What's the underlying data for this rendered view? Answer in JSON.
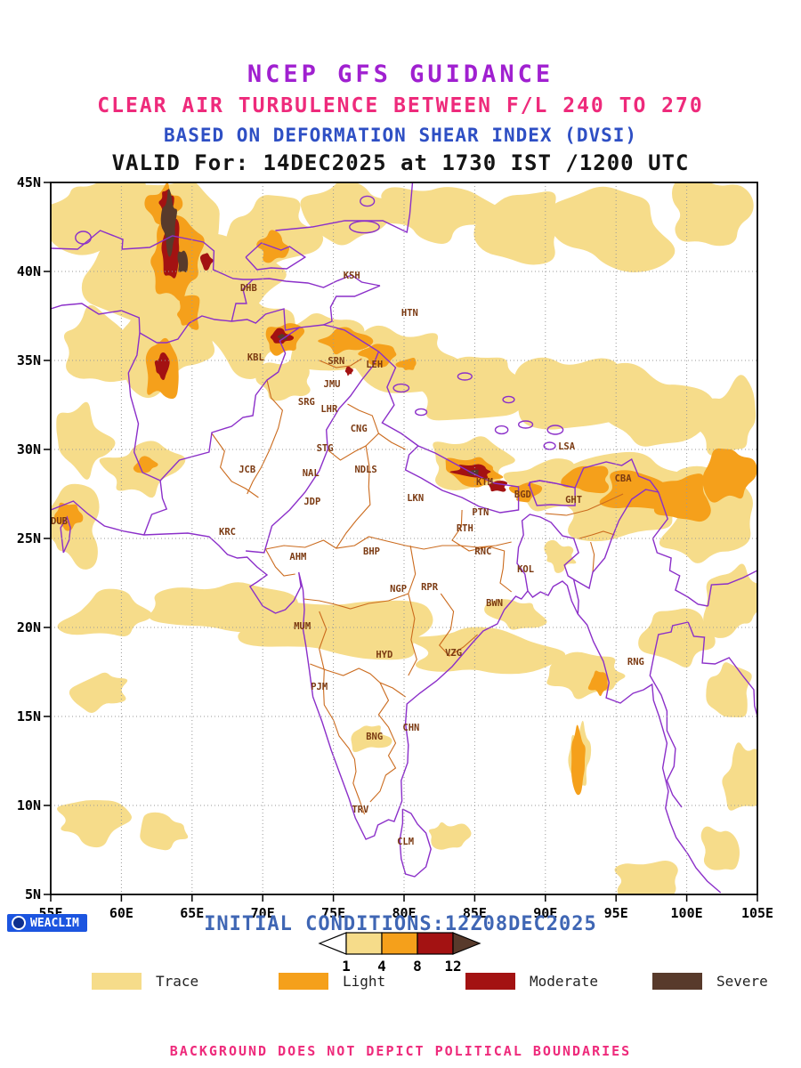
{
  "header": {
    "title": "NCEP GFS GUIDANCE",
    "subtitle1": "CLEAR AIR TURBULENCE BETWEEN F/L 240 TO 270",
    "subtitle2": "BASED ON DEFORMATION SHEAR INDEX (DVSI)",
    "valid_line": "VALID For: 14DEC2025 at 1730 IST /1200 UTC"
  },
  "map": {
    "lon_min": 55,
    "lon_max": 105,
    "lat_min": 5,
    "lat_max": 45,
    "lat_tick_labels": [
      "45N",
      "40N",
      "35N",
      "30N",
      "25N",
      "20N",
      "15N",
      "10N",
      "5N"
    ],
    "lon_tick_labels": [
      "55E",
      "60E",
      "65E",
      "70E",
      "75E",
      "80E",
      "85E",
      "90E",
      "95E",
      "100E",
      "105E"
    ],
    "stations": [
      {
        "code": "KSH",
        "lon": 76.3,
        "lat": 39.6
      },
      {
        "code": "DHB",
        "lon": 69.0,
        "lat": 38.9
      },
      {
        "code": "HTN",
        "lon": 80.4,
        "lat": 37.5
      },
      {
        "code": "KBL",
        "lon": 69.5,
        "lat": 35.0
      },
      {
        "code": "SRN",
        "lon": 75.2,
        "lat": 34.8
      },
      {
        "code": "LEH",
        "lon": 77.9,
        "lat": 34.6
      },
      {
        "code": "JMU",
        "lon": 74.9,
        "lat": 33.5
      },
      {
        "code": "SRG",
        "lon": 73.1,
        "lat": 32.5
      },
      {
        "code": "LHR",
        "lon": 74.7,
        "lat": 32.1
      },
      {
        "code": "CNG",
        "lon": 76.8,
        "lat": 31.0
      },
      {
        "code": "STG",
        "lon": 74.4,
        "lat": 29.9
      },
      {
        "code": "JCB",
        "lon": 68.9,
        "lat": 28.7
      },
      {
        "code": "NDLS",
        "lon": 77.3,
        "lat": 28.7
      },
      {
        "code": "NAL",
        "lon": 73.4,
        "lat": 28.5
      },
      {
        "code": "JDP",
        "lon": 73.5,
        "lat": 26.9
      },
      {
        "code": "LKN",
        "lon": 80.8,
        "lat": 27.1
      },
      {
        "code": "LSA",
        "lon": 91.5,
        "lat": 30.0
      },
      {
        "code": "CBA",
        "lon": 95.5,
        "lat": 28.2
      },
      {
        "code": "KTM",
        "lon": 85.7,
        "lat": 28.0
      },
      {
        "code": "BGD",
        "lon": 88.4,
        "lat": 27.3
      },
      {
        "code": "GHT",
        "lon": 92.0,
        "lat": 27.0
      },
      {
        "code": "PTN",
        "lon": 85.4,
        "lat": 26.3
      },
      {
        "code": "DUB",
        "lon": 55.6,
        "lat": 25.8
      },
      {
        "code": "KRC",
        "lon": 67.5,
        "lat": 25.2
      },
      {
        "code": "RTH",
        "lon": 84.3,
        "lat": 25.4
      },
      {
        "code": "AHM",
        "lon": 72.5,
        "lat": 23.8
      },
      {
        "code": "BHP",
        "lon": 77.7,
        "lat": 24.1
      },
      {
        "code": "RNC",
        "lon": 85.6,
        "lat": 24.1
      },
      {
        "code": "KOL",
        "lon": 88.6,
        "lat": 23.1
      },
      {
        "code": "NGP",
        "lon": 79.6,
        "lat": 22.0
      },
      {
        "code": "RPR",
        "lon": 81.8,
        "lat": 22.1
      },
      {
        "code": "BWN",
        "lon": 86.4,
        "lat": 21.2
      },
      {
        "code": "MUM",
        "lon": 72.8,
        "lat": 19.9
      },
      {
        "code": "VZG",
        "lon": 83.5,
        "lat": 18.4
      },
      {
        "code": "HYD",
        "lon": 78.6,
        "lat": 18.3
      },
      {
        "code": "RNG",
        "lon": 96.4,
        "lat": 17.9
      },
      {
        "code": "PJM",
        "lon": 74.0,
        "lat": 16.5
      },
      {
        "code": "CHN",
        "lon": 80.5,
        "lat": 14.2
      },
      {
        "code": "BNG",
        "lon": 77.9,
        "lat": 13.7
      },
      {
        "code": "TRV",
        "lon": 76.9,
        "lat": 9.6
      },
      {
        "code": "CLM",
        "lon": 80.1,
        "lat": 7.8
      }
    ]
  },
  "colorbar": {
    "tick_labels": [
      "1",
      "4",
      "8",
      "12"
    ]
  },
  "legend": {
    "items": [
      {
        "label": "Trace",
        "level": "trace"
      },
      {
        "label": "Light",
        "level": "light"
      },
      {
        "label": "Moderate",
        "level": "moderate"
      },
      {
        "label": "Severe",
        "level": "severe"
      }
    ]
  },
  "palette": {
    "trace": "#F6DC8A",
    "light": "#F5A01B",
    "moderate": "#A31212",
    "severe": "#583A2B",
    "boundary": "#8B2FC9",
    "states": "#CB6B1E",
    "labels": "#7B3A12",
    "grid": "#9A9A9A"
  },
  "footer": {
    "initial_conditions": "INITIAL CONDITIONS:12Z08DEC2025",
    "logo_text": "WEACLIM",
    "disclaimer": "BACKGROUND DOES NOT DEPICT POLITICAL BOUNDARIES"
  }
}
